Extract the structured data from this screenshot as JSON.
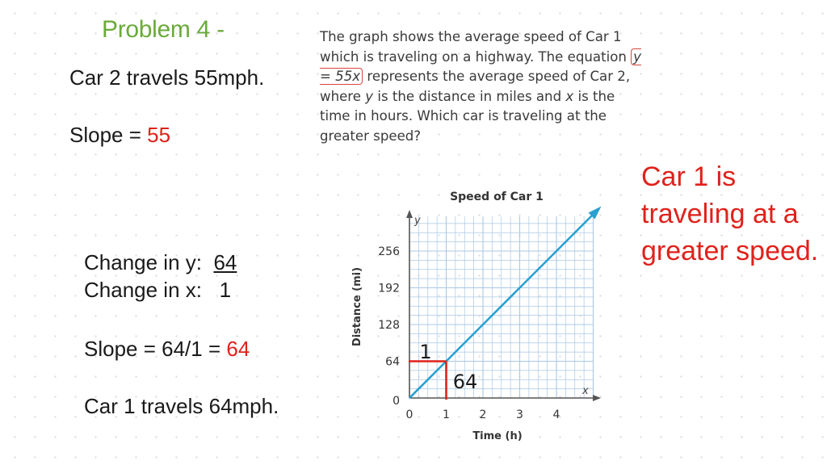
{
  "heading": "Problem 4 -",
  "notes": {
    "car2_rate": "Car 2 travels 55mph.",
    "slope2_label": "Slope = ",
    "slope2_value": "55",
    "change_y_label": "Change in y:",
    "change_y_value": "64",
    "change_x_label": "Change in x:",
    "change_x_value": "1",
    "slope1_label": "Slope = 64/1 = ",
    "slope1_value": "64",
    "car1_rate": "Car 1 travels 64mph."
  },
  "problem": {
    "text_before": "The graph shows the average speed of Car 1 which is traveling on a highway. The equation ",
    "equation": "y = 55x",
    "text_mid": " represents the average speed of Car 2, where ",
    "var_y": "y",
    "text_mid2": " is the distance in miles and ",
    "var_x": "x",
    "text_after": " is the time in hours. Which car is traveling at the greater speed?"
  },
  "conclusion": "Car 1 is traveling at a greater speed.",
  "annotations": {
    "run_label": "1",
    "rise_label": "64"
  },
  "colors": {
    "heading": "#6aaa3a",
    "highlight": "#e0211b",
    "line": "#2aa0d0",
    "grid": "#aac8e6"
  },
  "chart_data": {
    "type": "line",
    "title": "Speed of Car 1",
    "xlabel": "Time (h)",
    "ylabel": "Distance (mi)",
    "x_axis_letter": "x",
    "y_axis_letter": "y",
    "xlim": [
      0,
      5
    ],
    "ylim": [
      0,
      320
    ],
    "x_ticks": [
      0,
      1,
      2,
      3,
      4
    ],
    "y_ticks": [
      0,
      64,
      128,
      192,
      256
    ],
    "grid": true,
    "series": [
      {
        "x": [
          0,
          1,
          2,
          3,
          4,
          5
        ],
        "y": [
          0,
          64,
          128,
          192,
          256,
          320
        ]
      }
    ]
  }
}
